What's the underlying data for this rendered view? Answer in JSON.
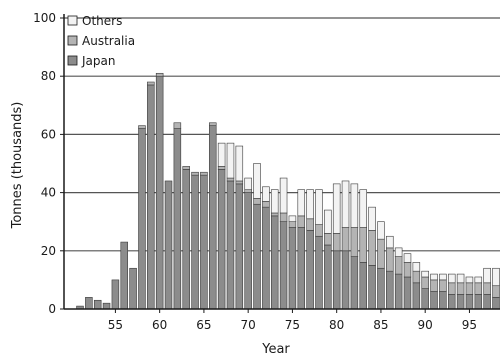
{
  "chart_data": {
    "type": "bar",
    "stacked": true,
    "title": "",
    "xlabel": "Year",
    "ylabel": "Tonnes (thousands)",
    "ylim": [
      0,
      100
    ],
    "yticks": [
      0,
      20,
      40,
      60,
      80,
      100
    ],
    "xtick_labels": [
      "55",
      "60",
      "65",
      "70",
      "75",
      "80",
      "85",
      "90",
      "95"
    ],
    "grid": "horizontal",
    "legend_position": "top-left",
    "categories": [
      1951,
      1952,
      1953,
      1954,
      1955,
      1956,
      1957,
      1958,
      1959,
      1960,
      1961,
      1962,
      1963,
      1964,
      1965,
      1966,
      1967,
      1968,
      1969,
      1970,
      1971,
      1972,
      1973,
      1974,
      1975,
      1976,
      1977,
      1978,
      1979,
      1980,
      1981,
      1982,
      1983,
      1984,
      1985,
      1986,
      1987,
      1988,
      1989,
      1990,
      1991,
      1992,
      1993,
      1994,
      1995,
      1996,
      1997,
      1998
    ],
    "series": [
      {
        "name": "Japan",
        "values": [
          1,
          4,
          3,
          2,
          10,
          23,
          14,
          62,
          77,
          80,
          44,
          62,
          48,
          46,
          46,
          63,
          48,
          44,
          43,
          40,
          36,
          35,
          32,
          30,
          28,
          28,
          27,
          25,
          22,
          20,
          20,
          18,
          16,
          15,
          14,
          13,
          12,
          11,
          9,
          7,
          6,
          6,
          5,
          5,
          5,
          5,
          5,
          4
        ]
      },
      {
        "name": "Australia",
        "values": [
          0,
          0,
          0,
          0,
          0,
          0,
          0,
          1,
          1,
          1,
          0,
          2,
          1,
          1,
          1,
          1,
          1,
          1,
          1,
          1,
          2,
          2,
          1,
          3,
          2,
          4,
          4,
          4,
          4,
          6,
          8,
          10,
          12,
          12,
          10,
          8,
          6,
          5,
          4,
          4,
          4,
          4,
          4,
          4,
          4,
          4,
          4,
          4
        ]
      },
      {
        "name": "Others",
        "values": [
          0,
          0,
          0,
          0,
          0,
          0,
          0,
          0,
          0,
          0,
          0,
          0,
          0,
          0,
          0,
          0,
          8,
          12,
          12,
          4,
          12,
          5,
          8,
          12,
          2,
          9,
          10,
          12,
          8,
          17,
          16,
          15,
          13,
          8,
          6,
          4,
          3,
          3,
          3,
          2,
          2,
          2,
          3,
          3,
          2,
          2,
          5,
          6
        ]
      }
    ],
    "colors": {
      "Japan": "#8c8c8c",
      "Australia": "#b4b4b4",
      "Others": "#f3f3f3",
      "grid": "#555555",
      "axis": "#1a1a1a",
      "bar_stroke": "#3a3a3a"
    }
  }
}
